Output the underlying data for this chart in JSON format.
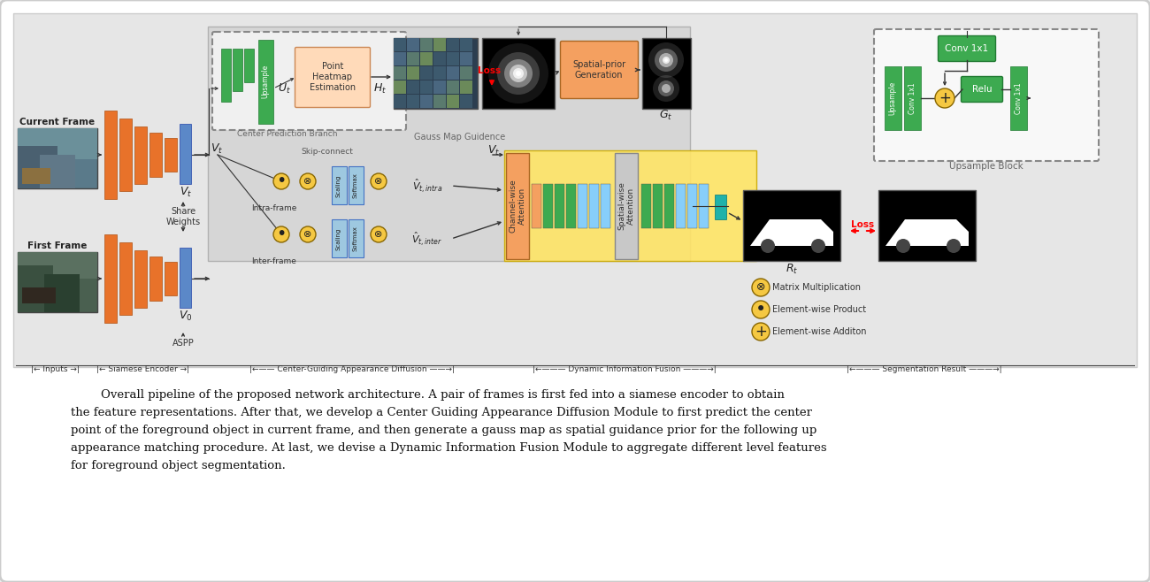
{
  "caption_lines": [
    "        Overall pipeline of the proposed network architecture. A pair of frames is first fed into a siamese encoder to obtain",
    "the feature representations. After that, we develop a Center Guiding Appearance Diffusion Module to first predict the center",
    "point of the foreground object in current frame, and then generate a gauss map as spatial guidance prior for the following up",
    "appearance matching procedure. At last, we devise a Dynamic Information Fusion Module to aggregate different level features",
    "for foreground object segmentation."
  ],
  "orange": "#E8722A",
  "blue": "#5B88C8",
  "green": "#3DAA50",
  "dark_green": "#217A32",
  "yellow": "#F5C842",
  "salmon": "#F4A060",
  "light_blue": "#87CEFA",
  "teal": "#20B2AA",
  "gray_bg": "#CCCCCC",
  "yellow_bg": "#FFE566",
  "white": "#FFFFFF",
  "black": "#000000"
}
